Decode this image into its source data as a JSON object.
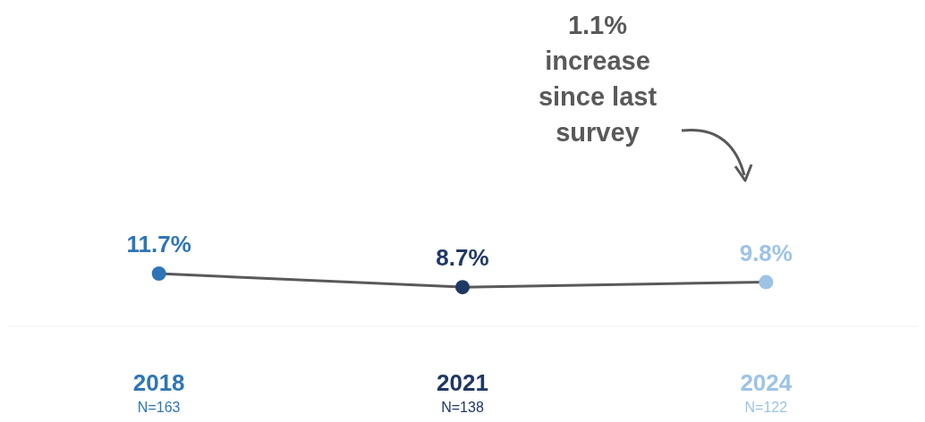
{
  "chart_data": {
    "type": "line",
    "categories": [
      "2018\nN=163",
      "2021\nN=138",
      "2024\nN=122"
    ],
    "values": [
      11.7,
      8.7,
      9.8
    ],
    "color": "#595959",
    "colors": [
      "#2e75b6",
      "#1f3864",
      "#9dc3e6"
    ],
    "marker": "circle",
    "value_labels": [
      "11.7%",
      "8.7%",
      "9.8%"
    ],
    "annotations": [
      "1.1% increase since last survey"
    ]
  }
}
